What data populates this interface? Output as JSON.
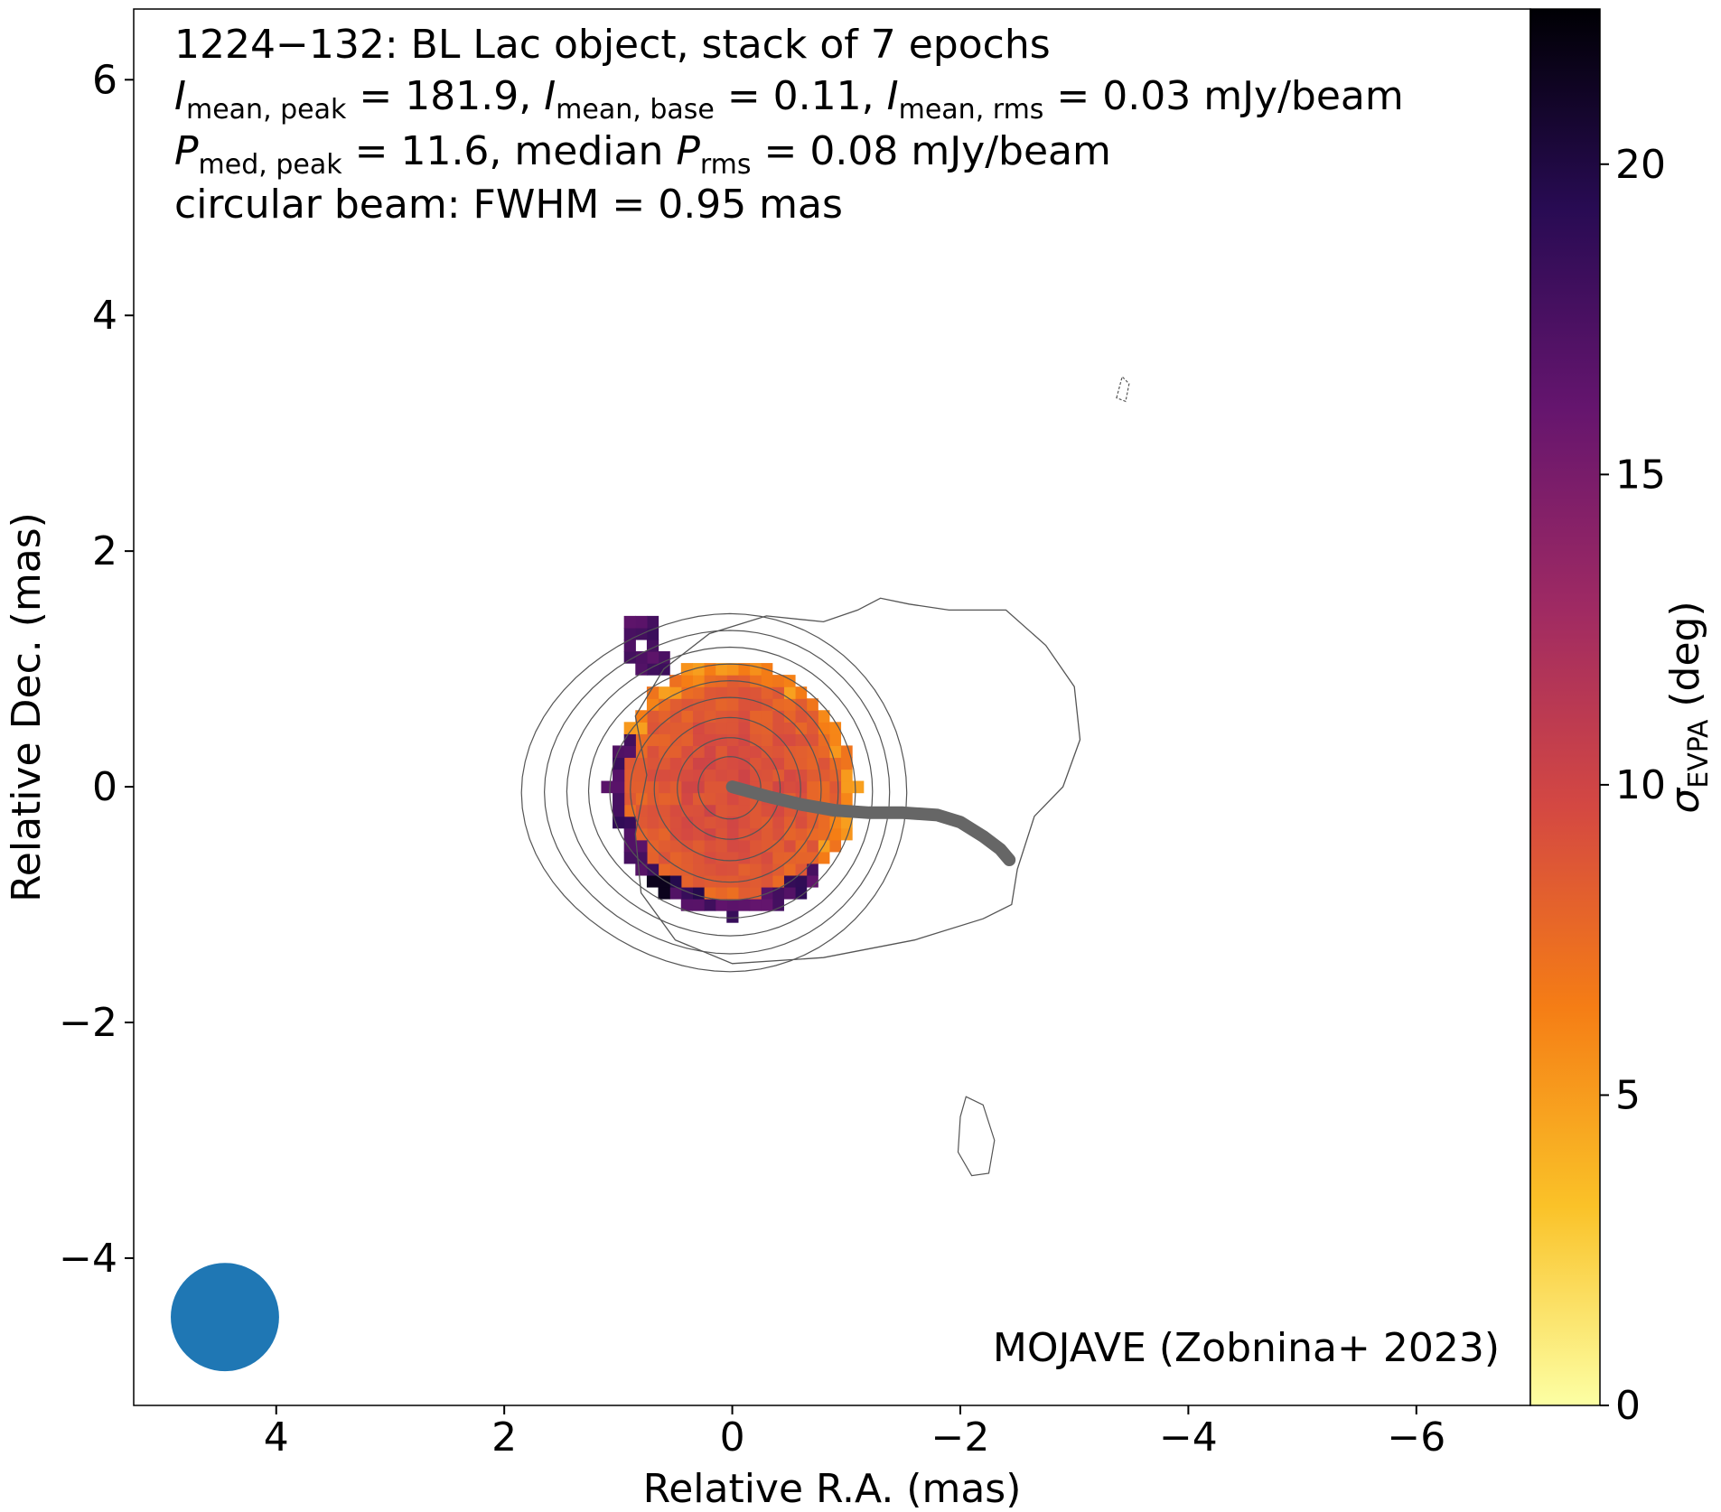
{
  "chart_data": {
    "type": "heatmap",
    "xlabel": "Relative R.A. (mas)",
    "ylabel": "Relative Dec. (mas)",
    "xlim": [
      5.25,
      -7.0
    ],
    "ylim": [
      -5.25,
      6.6
    ],
    "xticks": [
      4,
      2,
      0,
      -2,
      -4,
      -6
    ],
    "xtick_labels": [
      "4",
      "2",
      "0",
      "−2",
      "−4",
      "−6"
    ],
    "yticks": [
      -4,
      -2,
      0,
      2,
      4,
      6
    ],
    "ytick_labels": [
      "−4",
      "−2",
      "0",
      "2",
      "4",
      "6"
    ],
    "colorbar": {
      "label_main": "σ",
      "label_sub": "EVPA",
      "label_unit": " (deg)",
      "range": [
        0,
        22.5
      ],
      "ticks": [
        0,
        5,
        10,
        15,
        20
      ],
      "tick_labels": [
        "0",
        "5",
        "10",
        "15",
        "20"
      ],
      "colormap": [
        "#fcffa4",
        "#fac228",
        "#f57d15",
        "#d44842",
        "#9f2a63",
        "#65156e",
        "#280b53",
        "#000004"
      ]
    },
    "annotation": {
      "line1": "1224−132: BL Lac object, stack of 7 epochs",
      "line2": {
        "p1_sym": "I",
        "p1_sub": "mean, peak",
        "p1_val": " = 181.9, ",
        "p2_sym": "I",
        "p2_sub": "mean, base",
        "p2_val": " = 0.11, ",
        "p3_sym": "I",
        "p3_sub": "mean, rms",
        "p3_val": " = 0.03 mJy/beam"
      },
      "line3": {
        "p1_sym": "P",
        "p1_sub": "med, peak",
        "p1_val": " = 11.6, median ",
        "p2_sym": "P",
        "p2_sub": "rms",
        "p2_val": " = 0.08 mJy/beam"
      },
      "line4": "circular beam: FWHM = 0.95 mas"
    },
    "credit": "MOJAVE (Zobnina+ 2023)",
    "beam": {
      "fwhm_mas": 0.95,
      "color": "#1f77b4",
      "center": [
        4.45,
        -4.5
      ]
    },
    "ridge_line": {
      "color": "#666666",
      "points": [
        [
          0,
          0
        ],
        [
          -0.3,
          -0.08
        ],
        [
          -0.6,
          -0.15
        ],
        [
          -0.9,
          -0.2
        ],
        [
          -1.2,
          -0.22
        ],
        [
          -1.5,
          -0.22
        ],
        [
          -1.8,
          -0.24
        ],
        [
          -2.0,
          -0.3
        ],
        [
          -2.2,
          -0.42
        ],
        [
          -2.35,
          -0.53
        ],
        [
          -2.43,
          -0.62
        ]
      ]
    },
    "intensity_contours": {
      "color": "#555555",
      "outer_jet": [
        [
          0.75,
          0.1
        ],
        [
          0.85,
          0.6
        ],
        [
          0.6,
          1.0
        ],
        [
          0.2,
          1.3
        ],
        [
          -0.3,
          1.45
        ],
        [
          -0.8,
          1.4
        ],
        [
          -1.1,
          1.5
        ],
        [
          -1.3,
          1.6
        ],
        [
          -1.55,
          1.55
        ],
        [
          -1.9,
          1.5
        ],
        [
          -2.4,
          1.5
        ],
        [
          -2.75,
          1.2
        ],
        [
          -3.0,
          0.85
        ],
        [
          -3.05,
          0.4
        ],
        [
          -2.9,
          0.0
        ],
        [
          -2.65,
          -0.25
        ],
        [
          -2.5,
          -0.7
        ],
        [
          -2.45,
          -1.0
        ],
        [
          -2.2,
          -1.12
        ],
        [
          -1.6,
          -1.3
        ],
        [
          -0.8,
          -1.45
        ],
        [
          0.0,
          -1.5
        ],
        [
          0.5,
          -1.3
        ],
        [
          0.8,
          -0.9
        ],
        [
          0.85,
          -0.4
        ],
        [
          0.75,
          0.1
        ]
      ],
      "core_levels_radius_mas": [
        1.55,
        1.4,
        1.25,
        1.1,
        0.95,
        0.8,
        0.62,
        0.44,
        0.27
      ],
      "islands": [
        [
          [
            -2.05,
            -2.63
          ],
          [
            -2.2,
            -2.7
          ],
          [
            -2.3,
            -3.0
          ],
          [
            -2.25,
            -3.28
          ],
          [
            -2.1,
            -3.3
          ],
          [
            -1.98,
            -3.1
          ],
          [
            -2.0,
            -2.8
          ],
          [
            -2.05,
            -2.63
          ]
        ],
        [
          [
            -3.37,
            3.3
          ],
          [
            -3.42,
            3.48
          ],
          [
            -3.48,
            3.42
          ],
          [
            -3.45,
            3.27
          ],
          [
            -3.37,
            3.3
          ]
        ]
      ]
    },
    "sigma_evpa_map": {
      "pixel_mas": 0.1,
      "core_radius_mas": 1.1,
      "core_value_deg": 9.5,
      "orange_edge_value_deg": 6.0,
      "purple_fringe_value_deg": 17.5,
      "dark_edge_value_deg": 21.5
    }
  }
}
